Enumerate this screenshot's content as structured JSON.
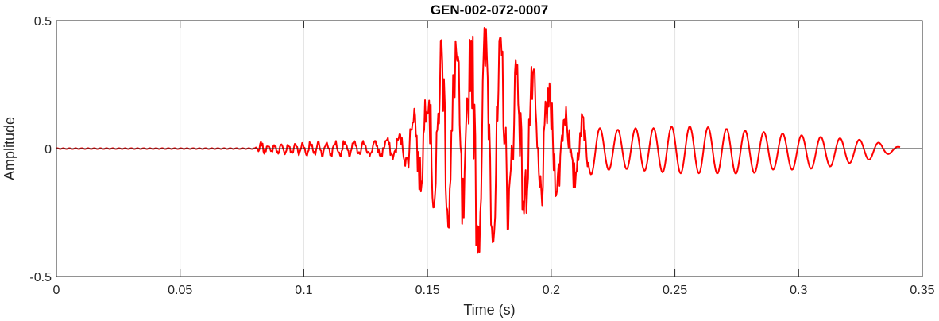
{
  "chart_data": {
    "type": "line",
    "title": "GEN-002-072-0007",
    "xlabel": "Time (s)",
    "ylabel": "Amplitude",
    "xlim": [
      0,
      0.35
    ],
    "ylim": [
      -0.5,
      0.5
    ],
    "grid": true,
    "x_ticks": [
      0,
      0.05,
      0.1,
      0.15,
      0.2,
      0.25,
      0.3,
      0.35
    ],
    "x_tick_labels": [
      "0",
      "0.05",
      "0.1",
      "0.15",
      "0.2",
      "0.25",
      "0.3",
      "0.35"
    ],
    "y_ticks": [
      -0.5,
      0,
      0.5
    ],
    "y_tick_labels": [
      "-0.5",
      "0",
      "0.5"
    ],
    "series": [
      {
        "color": "#ff0000",
        "sample_rate_hz": 3000,
        "duration_s": 0.341,
        "envelope": {
          "t": [
            0,
            0.0805,
            0.081,
            0.09,
            0.1,
            0.11,
            0.12,
            0.13,
            0.14,
            0.145,
            0.15,
            0.155,
            0.16,
            0.165,
            0.17,
            0.175,
            0.18,
            0.185,
            0.19,
            0.195,
            0.2,
            0.205,
            0.21,
            0.215,
            0.22,
            0.225,
            0.23,
            0.24,
            0.25,
            0.26,
            0.27,
            0.28,
            0.29,
            0.3,
            0.31,
            0.32,
            0.33,
            0.335,
            0.341
          ],
          "pos": [
            0.002,
            0.002,
            0.03,
            0.015,
            0.03,
            0.03,
            0.03,
            0.03,
            0.06,
            0.2,
            0.3,
            0.42,
            0.45,
            0.46,
            0.49,
            0.46,
            0.43,
            0.38,
            0.34,
            0.29,
            0.25,
            0.18,
            0.15,
            0.12,
            0.1,
            0.09,
            0.1,
            0.1,
            0.11,
            0.11,
            0.1,
            0.09,
            0.08,
            0.07,
            0.06,
            0.05,
            0.04,
            0.02,
            0.008
          ],
          "neg": [
            -0.002,
            -0.002,
            -0.02,
            -0.02,
            -0.03,
            -0.03,
            -0.03,
            -0.03,
            -0.05,
            -0.14,
            -0.2,
            -0.28,
            -0.32,
            -0.36,
            -0.41,
            -0.38,
            -0.33,
            -0.3,
            -0.27,
            -0.23,
            -0.2,
            -0.16,
            -0.15,
            -0.13,
            -0.11,
            -0.1,
            -0.1,
            -0.11,
            -0.12,
            -0.12,
            -0.12,
            -0.12,
            -0.1,
            -0.1,
            -0.09,
            -0.07,
            -0.05,
            -0.03,
            -0.01
          ]
        },
        "dominant_frequency_hz": {
          "t": [
            0.08,
            0.14,
            0.22,
            0.341
          ],
          "f": [
            400,
            180,
            140,
            125
          ]
        }
      }
    ]
  }
}
